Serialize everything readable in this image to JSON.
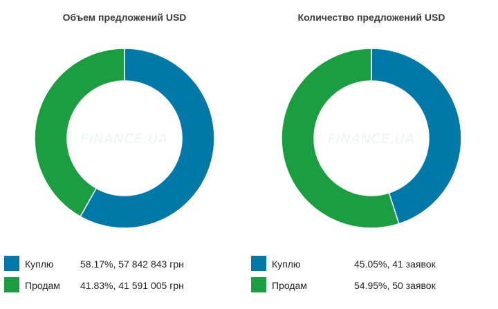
{
  "chart_data": [
    {
      "type": "pie",
      "title": "Объем предложений USD",
      "watermark": "FINANCE.UA",
      "series": [
        {
          "name": "Куплю",
          "value": 58.17,
          "label": "58.17%, 57 842 843 грн",
          "color": "#0079a8"
        },
        {
          "name": "Продам",
          "value": 41.83,
          "label": "41.83%, 41 591 005 грн",
          "color": "#1a9e3f"
        }
      ]
    },
    {
      "type": "pie",
      "title": "Количество предложений USD",
      "watermark": "FINANCE.UA",
      "series": [
        {
          "name": "Куплю",
          "value": 45.05,
          "label": "45.05%, 41 заявок",
          "color": "#0079a8"
        },
        {
          "name": "Продам",
          "value": 54.95,
          "label": "54.95%, 50 заявок",
          "color": "#1a9e3f"
        }
      ]
    }
  ]
}
